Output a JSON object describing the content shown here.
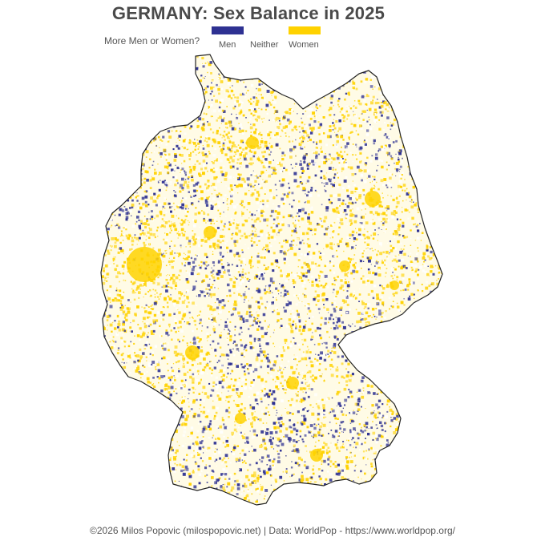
{
  "title": "GERMANY: Sex Balance in 2025",
  "legend": {
    "question": "More Men or Women?",
    "items": [
      {
        "label": "Men",
        "color": "#2e3192"
      },
      {
        "label": "Neither",
        "color": "#ffffff"
      },
      {
        "label": "Women",
        "color": "#ffd200"
      }
    ]
  },
  "map": {
    "country": "Germany",
    "border_color": "#222222"
  },
  "caption": "©2026 Milos Popovic (milospopovic.net) | Data: WorldPop - https://www.worldpop.org/"
}
